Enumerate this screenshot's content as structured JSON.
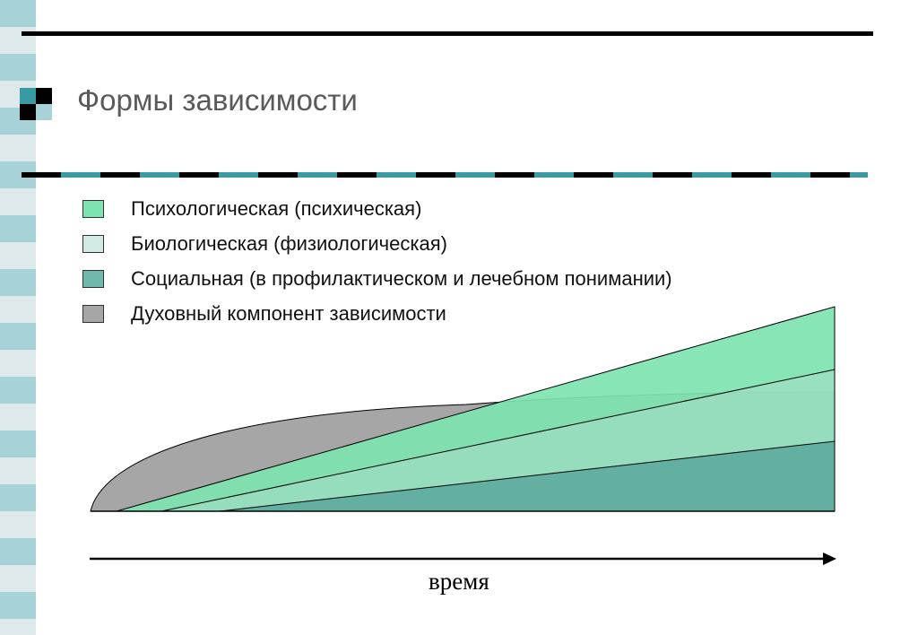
{
  "slide": {
    "title": "Формы зависимости",
    "x_axis_label": "время"
  },
  "legend": [
    {
      "label": "Психологическая (психическая)",
      "color": "#7ee3b0"
    },
    {
      "label": "Биологическая (физиологическая)",
      "color": "#d2ebe6"
    },
    {
      "label": "Социальная (в профилактическом и лечебном понимании)",
      "color": "#6fb8aa"
    },
    {
      "label": "Духовный компонент зависимости",
      "color": "#a6a6a6"
    }
  ],
  "theme": {
    "strip_light": "#a7d2d8",
    "strip_pale": "#dde9eb",
    "teal": "#3a9aa3",
    "black": "#000000"
  }
}
